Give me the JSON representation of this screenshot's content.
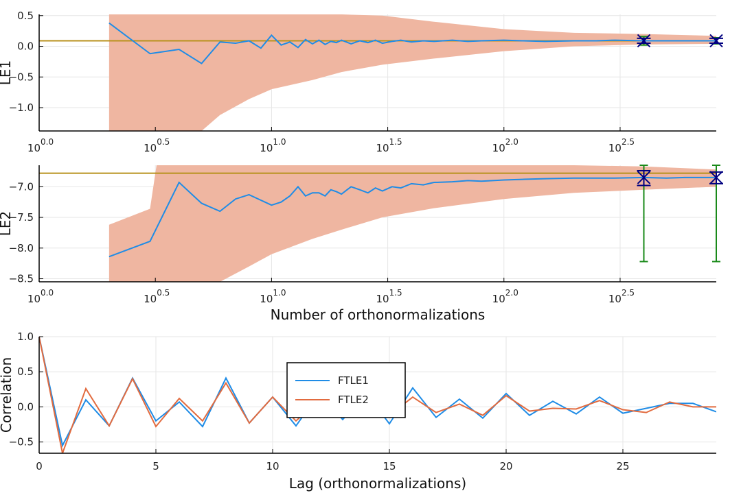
{
  "chart_data": [
    {
      "type": "line",
      "panel": "top",
      "title": "",
      "xlabel": "",
      "ylabel": "LE1",
      "xscale": "log10",
      "xlim": [
        1,
        820
      ],
      "ylim": [
        -1.38,
        0.52
      ],
      "grid": true,
      "xticks": [
        {
          "base": "10",
          "exp": "0.0"
        },
        {
          "base": "10",
          "exp": "0.5"
        },
        {
          "base": "10",
          "exp": "1.0"
        },
        {
          "base": "10",
          "exp": "1.5"
        },
        {
          "base": "10",
          "exp": "2.0"
        },
        {
          "base": "10",
          "exp": "2.5"
        }
      ],
      "yticks": [
        "0.5",
        "0.0",
        "−0.5",
        "−1.0"
      ],
      "reference_value": 0.09,
      "colors": {
        "line": "#1f8ce6",
        "band": "#efb6a1",
        "reference": "#b8921d",
        "errorbar_outer": "#1a8a1a",
        "errorbar_inner": "#000080"
      },
      "series": [
        {
          "x": [
            2,
            3,
            4,
            5,
            6,
            7,
            8,
            9,
            10,
            11,
            12,
            13,
            14,
            15,
            16,
            17,
            18,
            19,
            20,
            22,
            24,
            26,
            28,
            30,
            33,
            36,
            40,
            45,
            50,
            60,
            70,
            80,
            100,
            120,
            150,
            200,
            250,
            300,
            400,
            500,
            600,
            700,
            820
          ],
          "y": [
            0.38,
            -0.12,
            -0.05,
            -0.28,
            0.07,
            0.05,
            0.09,
            -0.03,
            0.18,
            0.02,
            0.07,
            -0.02,
            0.11,
            0.04,
            0.1,
            0.03,
            0.08,
            0.06,
            0.1,
            0.04,
            0.09,
            0.06,
            0.1,
            0.05,
            0.08,
            0.1,
            0.07,
            0.09,
            0.08,
            0.1,
            0.08,
            0.09,
            0.1,
            0.09,
            0.08,
            0.09,
            0.09,
            0.1,
            0.09,
            0.09,
            0.09,
            0.09,
            0.09
          ]
        }
      ],
      "band": {
        "x": [
          2,
          3,
          4,
          5,
          6,
          8,
          10,
          15,
          20,
          30,
          50,
          100,
          200,
          400,
          820
        ],
        "lower": [
          -1.5,
          -1.5,
          -1.5,
          -1.5,
          -1.12,
          -0.86,
          -0.7,
          -0.55,
          -0.42,
          -0.3,
          -0.2,
          -0.08,
          0.0,
          0.03,
          0.04
        ],
        "upper": [
          0.52,
          0.52,
          0.52,
          0.52,
          0.52,
          0.52,
          0.52,
          0.52,
          0.52,
          0.5,
          0.4,
          0.28,
          0.22,
          0.2,
          0.17
        ]
      },
      "errorbars": [
        {
          "x": 400,
          "y": 0.09,
          "outer": [
            0.02,
            0.16
          ],
          "inner": [
            0.05,
            0.13
          ]
        },
        {
          "x": 820,
          "y": 0.09,
          "outer": [
            0.04,
            0.14
          ],
          "inner": [
            0.05,
            0.13
          ]
        }
      ]
    },
    {
      "type": "line",
      "panel": "middle",
      "title": "",
      "xlabel": "Number of orthonormalizations",
      "ylabel": "LE2",
      "xscale": "log10",
      "xlim": [
        1,
        820
      ],
      "ylim": [
        -8.55,
        -6.65
      ],
      "grid": true,
      "xticks": [
        {
          "base": "10",
          "exp": "0.0"
        },
        {
          "base": "10",
          "exp": "0.5"
        },
        {
          "base": "10",
          "exp": "1.0"
        },
        {
          "base": "10",
          "exp": "1.5"
        },
        {
          "base": "10",
          "exp": "2.0"
        },
        {
          "base": "10",
          "exp": "2.5"
        }
      ],
      "yticks": [
        "−7.0",
        "−7.5",
        "−8.0",
        "−8.5"
      ],
      "reference_value": -6.78,
      "colors": {
        "line": "#1f8ce6",
        "band": "#efb6a1",
        "reference": "#b8921d",
        "errorbar_outer": "#1a8a1a",
        "errorbar_inner": "#000080"
      },
      "series": [
        {
          "x": [
            2,
            3,
            4,
            5,
            6,
            7,
            8,
            9,
            10,
            11,
            12,
            13,
            14,
            15,
            16,
            17,
            18,
            19,
            20,
            22,
            24,
            26,
            28,
            30,
            33,
            36,
            40,
            45,
            50,
            60,
            70,
            80,
            100,
            120,
            150,
            200,
            250,
            300,
            400,
            500,
            600,
            700,
            820
          ],
          "y": [
            -8.14,
            -7.89,
            -6.93,
            -7.27,
            -7.4,
            -7.2,
            -7.13,
            -7.22,
            -7.3,
            -7.25,
            -7.15,
            -7.0,
            -7.15,
            -7.1,
            -7.1,
            -7.15,
            -7.05,
            -7.08,
            -7.12,
            -7.0,
            -7.05,
            -7.1,
            -7.02,
            -7.07,
            -7.0,
            -7.02,
            -6.95,
            -6.97,
            -6.93,
            -6.92,
            -6.9,
            -6.91,
            -6.89,
            -6.88,
            -6.87,
            -6.86,
            -6.86,
            -6.86,
            -6.85,
            -6.86,
            -6.85,
            -6.85,
            -6.85
          ]
        }
      ],
      "band": {
        "x": [
          2,
          3,
          3.2,
          4,
          5,
          6,
          8,
          10,
          15,
          20,
          30,
          50,
          100,
          200,
          400,
          820
        ],
        "lower": [
          -8.65,
          -8.65,
          -8.65,
          -8.65,
          -8.65,
          -8.6,
          -8.3,
          -8.1,
          -7.85,
          -7.7,
          -7.5,
          -7.35,
          -7.2,
          -7.1,
          -7.05,
          -7.0
        ],
        "upper": [
          -7.62,
          -7.36,
          -6.65,
          -6.65,
          -6.65,
          -6.65,
          -6.65,
          -6.65,
          -6.65,
          -6.65,
          -6.65,
          -6.65,
          -6.65,
          -6.65,
          -6.67,
          -6.72
        ]
      },
      "errorbars": [
        {
          "x": 400,
          "y": -6.85,
          "outer": [
            -8.22,
            -6.65
          ],
          "inner": [
            -6.98,
            -6.74
          ]
        },
        {
          "x": 820,
          "y": -6.85,
          "outer": [
            -8.22,
            -6.65
          ],
          "inner": [
            -6.95,
            -6.76
          ]
        }
      ]
    },
    {
      "type": "line",
      "panel": "bottom",
      "title": "",
      "xlabel": "Lag (orthonormalizations)",
      "ylabel": "Correlation",
      "xlim": [
        0,
        29
      ],
      "ylim": [
        -0.66,
        1.0
      ],
      "grid": true,
      "xticks": [
        "0",
        "5",
        "10",
        "15",
        "20",
        "25"
      ],
      "yticks": [
        "1.0",
        "0.5",
        "0.0",
        "−0.5"
      ],
      "legend": {
        "placement": "center",
        "entries": [
          "FTLE1",
          "FTLE2"
        ]
      },
      "x": [
        0,
        1,
        2,
        3,
        4,
        5,
        6,
        7,
        8,
        9,
        10,
        11,
        12,
        13,
        14,
        15,
        16,
        17,
        18,
        19,
        20,
        21,
        22,
        23,
        24,
        25,
        26,
        27,
        28,
        29
      ],
      "series": [
        {
          "name": "FTLE1",
          "color": "#1f8ce6",
          "values": [
            1.0,
            -0.55,
            0.1,
            -0.27,
            0.41,
            -0.2,
            0.07,
            -0.28,
            0.41,
            -0.23,
            0.14,
            -0.27,
            0.2,
            -0.18,
            0.2,
            -0.24,
            0.27,
            -0.15,
            0.11,
            -0.16,
            0.19,
            -0.12,
            0.08,
            -0.1,
            0.14,
            -0.09,
            -0.02,
            0.05,
            0.05,
            -0.07
          ]
        },
        {
          "name": "FTLE2",
          "color": "#e26b3f",
          "values": [
            1.0,
            -0.66,
            0.26,
            -0.27,
            0.4,
            -0.28,
            0.12,
            -0.2,
            0.34,
            -0.23,
            0.14,
            -0.2,
            0.1,
            -0.1,
            0.15,
            -0.12,
            0.14,
            -0.08,
            0.04,
            -0.12,
            0.16,
            -0.06,
            -0.02,
            -0.03,
            0.09,
            -0.04,
            -0.08,
            0.07,
            0.0,
            0.0
          ]
        }
      ]
    }
  ]
}
